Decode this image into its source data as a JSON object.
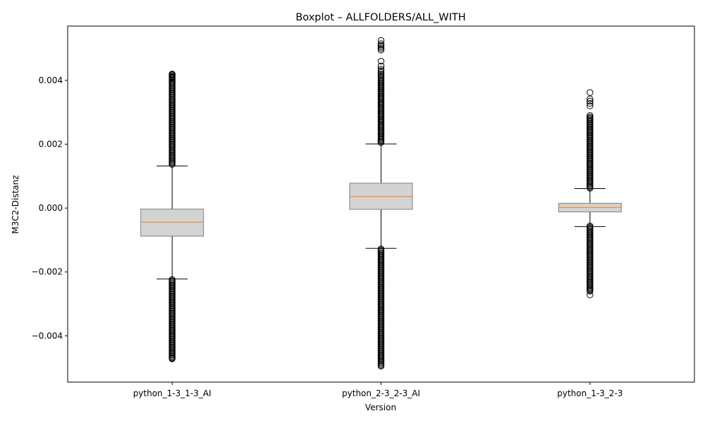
{
  "chart_data": {
    "type": "box",
    "title": "Boxplot – ALLFOLDERS/ALL_WITH",
    "xlabel": "Version",
    "ylabel": "M3C2-Distanz",
    "ylim": [
      -0.00545,
      0.0057
    ],
    "yticks": [
      {
        "value": 0.004,
        "label": "0.004"
      },
      {
        "value": 0.002,
        "label": "0.002"
      },
      {
        "value": 0.0,
        "label": "0.000"
      },
      {
        "value": -0.002,
        "label": "−0.002"
      },
      {
        "value": -0.004,
        "label": "−0.004"
      }
    ],
    "grid": false,
    "categories": [
      "python_1-3_1-3_AI",
      "python_2-3_2-3_AI",
      "python_1-3_2-3"
    ],
    "boxes": [
      {
        "category": "python_1-3_1-3_AI",
        "whisker_low": -0.00222,
        "q1": -0.00088,
        "median": -0.00044,
        "q3": -3e-05,
        "whisker_high": 0.00132,
        "outliers_high_range": [
          0.00134,
          0.00405
        ],
        "outliers_low_range": [
          -0.00465,
          -0.00224
        ],
        "outliers_extra": [
          0.00408,
          0.0041,
          0.00412,
          0.00415,
          0.00418,
          0.0042,
          -0.00468,
          -0.0047,
          -0.00472
        ]
      },
      {
        "category": "python_2-3_2-3_AI",
        "whisker_low": -0.00126,
        "q1": -4e-05,
        "median": 0.00036,
        "q3": 0.00078,
        "whisker_high": 0.00201,
        "outliers_high_range": [
          0.00203,
          0.0041
        ],
        "outliers_low_range": [
          -0.0049,
          -0.00128
        ],
        "outliers_extra": [
          0.00415,
          0.0042,
          0.00425,
          0.0043,
          0.00435,
          0.00445,
          0.0046,
          0.00495,
          0.005,
          0.00505,
          0.0051,
          0.00515,
          0.00525,
          -0.00492,
          -0.00495
        ]
      },
      {
        "category": "python_1-3_2-3",
        "whisker_low": -0.00058,
        "q1": -0.00012,
        "median": 2e-05,
        "q3": 0.00015,
        "whisker_high": 0.00061,
        "outliers_high_range": [
          0.00062,
          0.00285
        ],
        "outliers_low_range": [
          -0.00258,
          -0.00056
        ],
        "outliers_extra": [
          0.0029,
          0.0032,
          0.00328,
          0.00335,
          0.00342,
          0.00362,
          -0.0026,
          -0.00272
        ]
      }
    ],
    "colors": {
      "box_fill": "#d3d3d3",
      "box_edge": "#808080",
      "median": "#ff7f0e",
      "whisker": "#000000",
      "outlier_edge": "#000000"
    }
  }
}
